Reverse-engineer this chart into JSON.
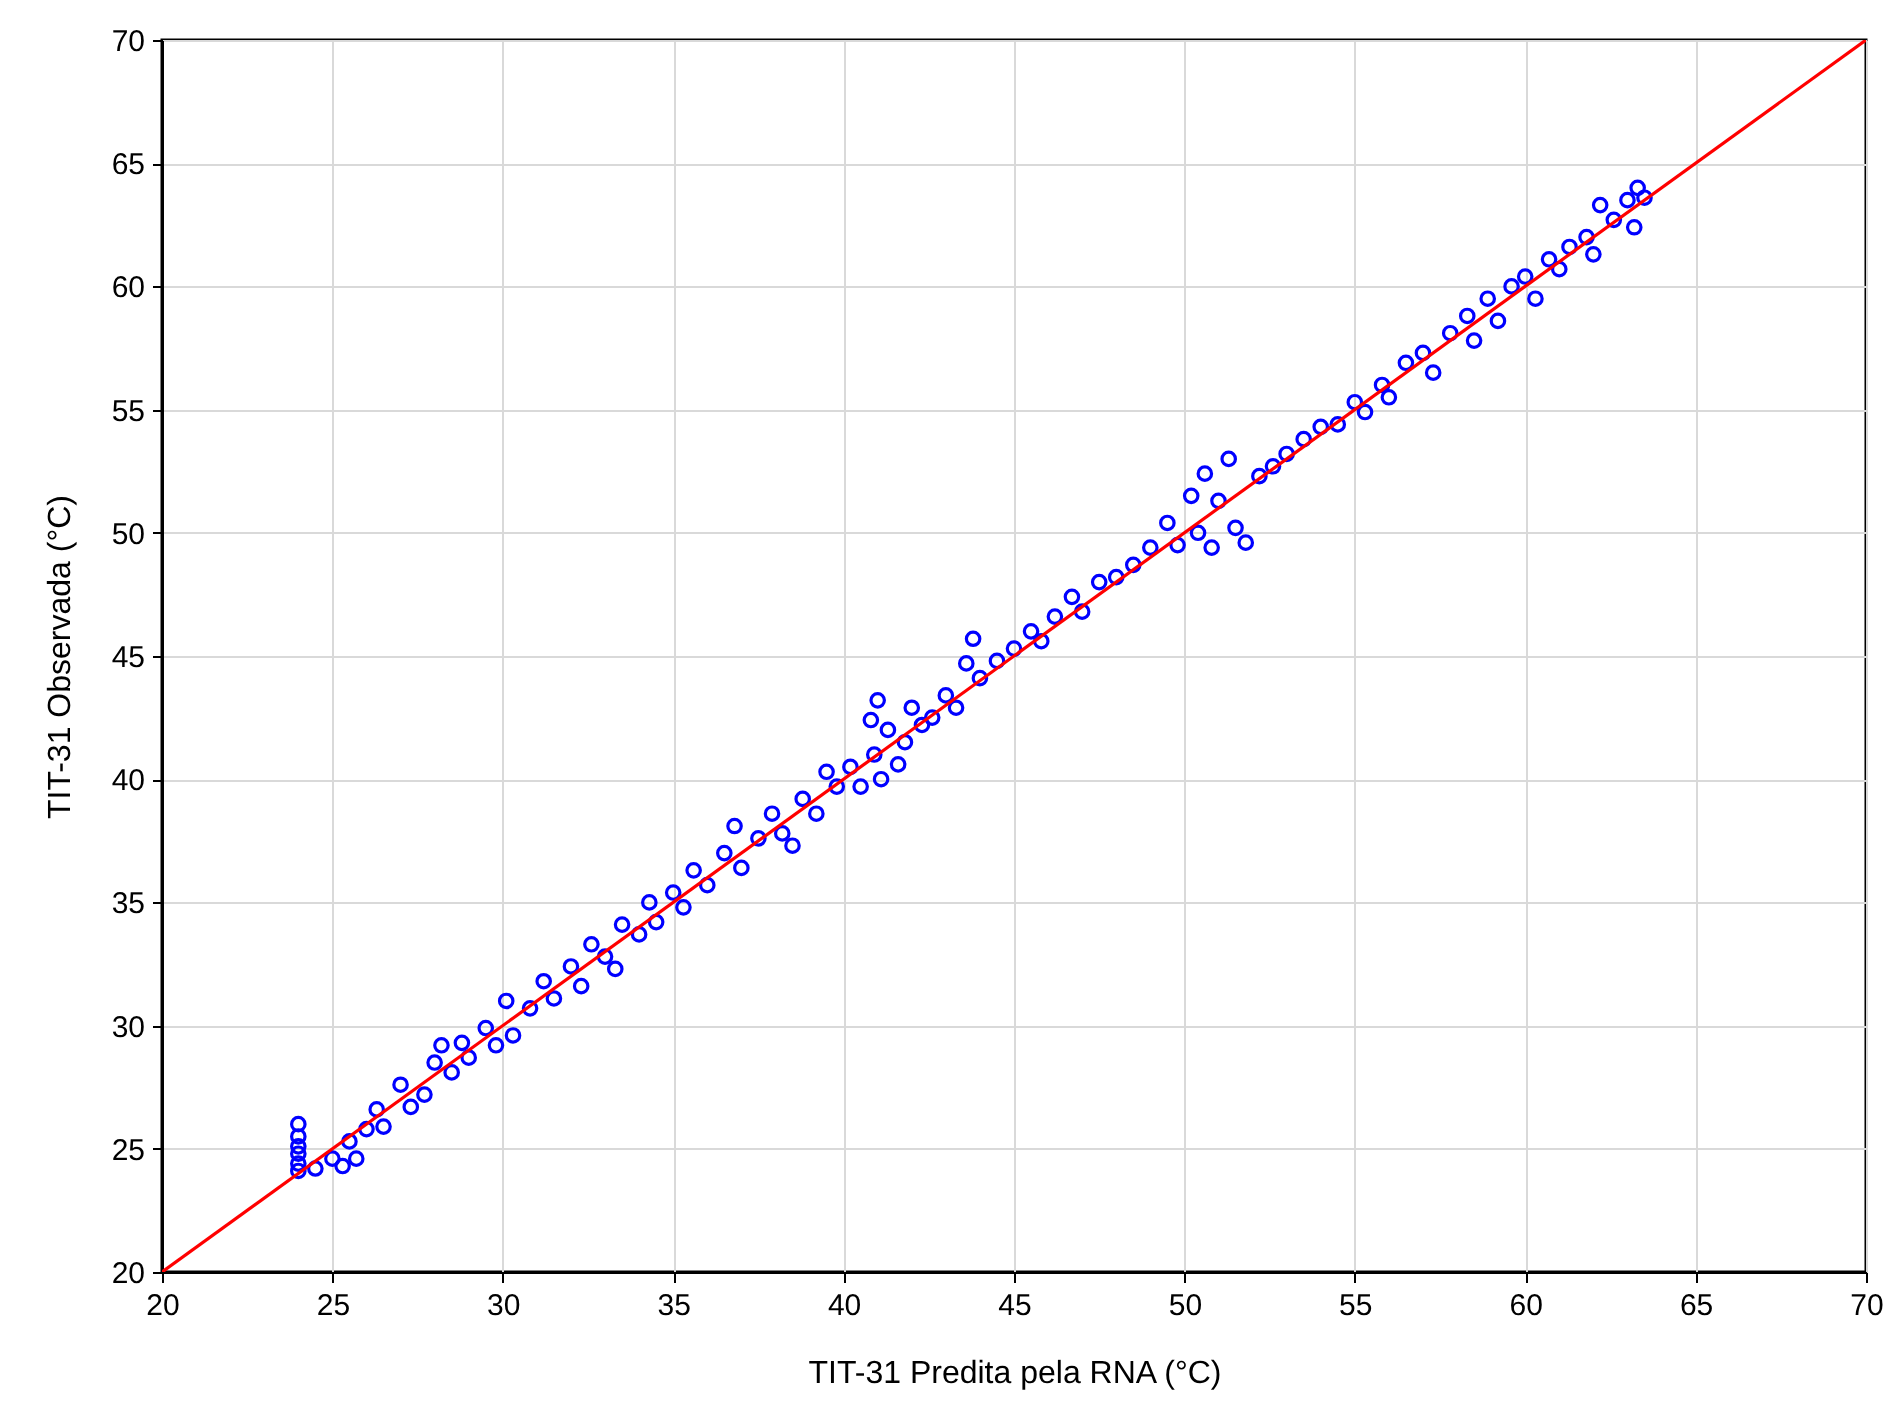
{
  "chart_data": {
    "type": "scatter",
    "xlabel": "TIT-31 Predita pela RNA (°C)",
    "ylabel": "TIT-31 Observada (°C)",
    "xlim": [
      20,
      70
    ],
    "ylim": [
      20,
      70
    ],
    "xticks": [
      20,
      25,
      30,
      35,
      40,
      45,
      50,
      55,
      60,
      65,
      70
    ],
    "yticks": [
      20,
      25,
      30,
      35,
      40,
      45,
      50,
      55,
      60,
      65,
      70
    ],
    "grid": true,
    "series": [
      {
        "type": "scatter",
        "marker": "circle",
        "color": "#0000ff",
        "x": [
          24,
          24,
          24,
          24,
          24,
          24,
          24.5,
          25,
          25.3,
          25.5,
          25.7,
          26,
          26.3,
          26.5,
          27,
          27.3,
          27.7,
          28,
          28.2,
          28.5,
          28.8,
          29,
          29.5,
          29.8,
          30.1,
          30.3,
          30.8,
          31.2,
          31.5,
          32,
          32.3,
          32.6,
          33,
          33.3,
          33.5,
          34,
          34.3,
          34.5,
          35,
          35.3,
          35.6,
          36,
          36.5,
          36.8,
          37,
          37.5,
          37.9,
          38.2,
          38.5,
          38.8,
          39.2,
          39.5,
          39.8,
          40.2,
          40.5,
          40.8,
          40.9,
          41,
          41.1,
          41.3,
          41.6,
          41.8,
          42,
          42.3,
          42.6,
          43,
          43.3,
          43.8,
          43.6,
          44,
          44.5,
          45,
          45.5,
          45.8,
          46.2,
          46.7,
          47,
          47.5,
          48,
          48.5,
          49,
          49.5,
          49.8,
          50.2,
          50.4,
          50.6,
          50.8,
          51,
          51.3,
          51.5,
          51.8,
          52.2,
          52.6,
          53,
          53.5,
          54,
          54.5,
          55,
          55.3,
          55.8,
          56,
          56.5,
          57,
          57.3,
          57.8,
          58.3,
          58.5,
          58.9,
          59.2,
          59.6,
          60,
          60.3,
          60.7,
          61,
          61.3,
          61.8,
          62,
          62.2,
          62.6,
          63,
          63.2,
          63.3,
          63.5
        ],
        "values": [
          24.1,
          24.4,
          24.8,
          25.1,
          25.5,
          26.0,
          24.2,
          24.6,
          24.3,
          25.3,
          24.6,
          25.8,
          26.6,
          25.9,
          27.6,
          26.7,
          27.2,
          28.5,
          29.2,
          28.1,
          29.3,
          28.7,
          29.9,
          29.2,
          31.0,
          29.6,
          30.7,
          31.8,
          31.1,
          32.4,
          31.6,
          33.3,
          32.8,
          32.3,
          34.1,
          33.7,
          35.0,
          34.2,
          35.4,
          34.8,
          36.3,
          35.7,
          37.0,
          38.1,
          36.4,
          37.6,
          38.6,
          37.8,
          37.3,
          39.2,
          38.6,
          40.3,
          39.7,
          40.5,
          39.7,
          42.4,
          41.0,
          43.2,
          40.0,
          42.0,
          40.6,
          41.5,
          42.9,
          42.2,
          42.5,
          43.4,
          42.9,
          45.7,
          44.7,
          44.1,
          44.8,
          45.3,
          46.0,
          45.6,
          46.6,
          47.4,
          46.8,
          48.0,
          48.2,
          48.7,
          49.4,
          50.4,
          49.5,
          51.5,
          50.0,
          52.4,
          49.4,
          51.3,
          53.0,
          50.2,
          49.6,
          52.3,
          52.7,
          53.2,
          53.8,
          54.3,
          54.4,
          55.3,
          54.9,
          56.0,
          55.5,
          56.9,
          57.3,
          56.5,
          58.1,
          58.8,
          57.8,
          59.5,
          58.6,
          60.0,
          60.4,
          59.5,
          61.1,
          60.7,
          61.6,
          62.0,
          61.3,
          63.3,
          62.7,
          63.5,
          62.4,
          64.0,
          63.6
        ]
      },
      {
        "type": "line",
        "color": "#ff0000",
        "x": [
          20,
          70
        ],
        "values": [
          20,
          70
        ]
      }
    ]
  }
}
